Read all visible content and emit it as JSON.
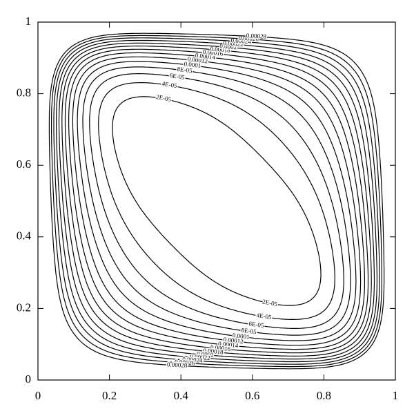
{
  "chart_data": {
    "type": "contour",
    "color": "#000000",
    "levels": [
      {
        "value": 2e-05,
        "label": "2E-05"
      },
      {
        "value": 4e-05,
        "label": "4E-05"
      },
      {
        "value": 6e-05,
        "label": "6E-05"
      },
      {
        "value": 8e-05,
        "label": "8E-05"
      },
      0.0001,
      0.00012,
      0.00014,
      0.00016,
      0.00018,
      0.0002,
      0.00022,
      0.00024,
      0.00026,
      0.00028
    ],
    "xlim": [
      0,
      1
    ],
    "ylim": [
      0,
      1
    ],
    "xticks": [
      0,
      0.2,
      0.4,
      0.6,
      0.8,
      1
    ],
    "yticks": [
      0,
      0.2,
      0.4,
      0.6,
      0.8,
      1
    ]
  }
}
